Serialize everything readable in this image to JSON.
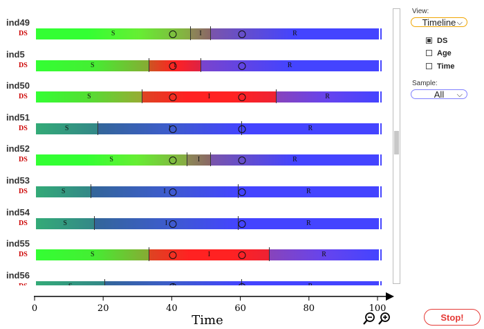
{
  "rows": [
    {
      "name": "ind49",
      "tag": "DS",
      "segments": [
        {
          "label": "S",
          "start": 0,
          "end": 45,
          "colors": [
            "#33ff33",
            "#33ff33",
            "#66ee33",
            "#88aa44"
          ]
        },
        {
          "label": "I",
          "start": 45,
          "end": 51,
          "colors": [
            "#8c8a55",
            "#8a6666"
          ]
        },
        {
          "label": "R",
          "start": 51,
          "end": 100,
          "colors": [
            "#7a55aa",
            "#4444ff",
            "#4444ff"
          ]
        }
      ],
      "markers": [
        40,
        60
      ]
    },
    {
      "name": "ind5",
      "tag": "DS",
      "segments": [
        {
          "label": "S",
          "start": 0,
          "end": 33,
          "colors": [
            "#33ff33",
            "#44ee33",
            "#88aa33"
          ]
        },
        {
          "label": "I",
          "start": 33,
          "end": 48,
          "colors": [
            "#cc5522",
            "#ff2222",
            "#dd2244"
          ]
        },
        {
          "label": "R",
          "start": 48,
          "end": 100,
          "colors": [
            "#7a44cc",
            "#4444ff",
            "#4444ff"
          ]
        }
      ],
      "markers": [
        40,
        60
      ]
    },
    {
      "name": "ind50",
      "tag": "DS",
      "segments": [
        {
          "label": "S",
          "start": 0,
          "end": 31,
          "colors": [
            "#33ff33",
            "#55dd33",
            "#99aa33"
          ]
        },
        {
          "label": "I",
          "start": 31,
          "end": 70,
          "colors": [
            "#dd4422",
            "#ff2222",
            "#ff2222",
            "#ee2233"
          ]
        },
        {
          "label": "R",
          "start": 70,
          "end": 100,
          "colors": [
            "#8844bb",
            "#6644ee",
            "#4444ff"
          ]
        }
      ],
      "markers": [
        40,
        60
      ]
    },
    {
      "name": "ind51",
      "tag": "DS",
      "segments": [
        {
          "label": "S",
          "start": 0,
          "end": 18,
          "colors": [
            "#33aa77",
            "#338888"
          ]
        },
        {
          "label": "I",
          "start": 18,
          "end": 60,
          "colors": [
            "#336699",
            "#3d5ccc",
            "#4444ff"
          ]
        },
        {
          "label": "R",
          "start": 60,
          "end": 100,
          "colors": [
            "#4444ff",
            "#4444ff"
          ]
        }
      ],
      "markers": [
        40,
        60
      ]
    },
    {
      "name": "ind52",
      "tag": "DS",
      "segments": [
        {
          "label": "S",
          "start": 0,
          "end": 44,
          "colors": [
            "#33ff33",
            "#33ff33",
            "#66ee33",
            "#88aa44"
          ]
        },
        {
          "label": "I",
          "start": 44,
          "end": 51,
          "colors": [
            "#8c8a55",
            "#8a6666"
          ]
        },
        {
          "label": "R",
          "start": 51,
          "end": 100,
          "colors": [
            "#7a55aa",
            "#4444ff",
            "#4444ff"
          ]
        }
      ],
      "markers": [
        40,
        60
      ]
    },
    {
      "name": "ind53",
      "tag": "DS",
      "segments": [
        {
          "label": "S",
          "start": 0,
          "end": 16,
          "colors": [
            "#33aa77",
            "#338888"
          ]
        },
        {
          "label": "I",
          "start": 16,
          "end": 59,
          "colors": [
            "#336699",
            "#3d5ccc",
            "#4444ff"
          ]
        },
        {
          "label": "R",
          "start": 59,
          "end": 100,
          "colors": [
            "#4444ff",
            "#4444ff"
          ]
        }
      ],
      "markers": [
        40,
        60
      ]
    },
    {
      "name": "ind54",
      "tag": "DS",
      "segments": [
        {
          "label": "S",
          "start": 0,
          "end": 17,
          "colors": [
            "#33aa77",
            "#338888"
          ]
        },
        {
          "label": "I",
          "start": 17,
          "end": 59,
          "colors": [
            "#336699",
            "#3d5ccc",
            "#4444ff"
          ]
        },
        {
          "label": "R",
          "start": 59,
          "end": 100,
          "colors": [
            "#4444ff",
            "#4444ff"
          ]
        }
      ],
      "markers": [
        40,
        60
      ]
    },
    {
      "name": "ind55",
      "tag": "DS",
      "segments": [
        {
          "label": "S",
          "start": 0,
          "end": 33,
          "colors": [
            "#33ff33",
            "#44ee33",
            "#88aa33"
          ]
        },
        {
          "label": "I",
          "start": 33,
          "end": 68,
          "colors": [
            "#dd4422",
            "#ff2222",
            "#ff2222",
            "#ee2233"
          ]
        },
        {
          "label": "R",
          "start": 68,
          "end": 100,
          "colors": [
            "#8844bb",
            "#6644ee",
            "#4444ff"
          ]
        }
      ],
      "markers": [
        40,
        60
      ]
    },
    {
      "name": "ind56",
      "tag": "DS",
      "segments": [
        {
          "label": "S",
          "start": 0,
          "end": 20,
          "colors": [
            "#33aa77",
            "#338888"
          ]
        },
        {
          "label": "I",
          "start": 20,
          "end": 60,
          "colors": [
            "#336699",
            "#3d5ccc",
            "#4444ff"
          ]
        },
        {
          "label": "R",
          "start": 60,
          "end": 100,
          "colors": [
            "#4444ff",
            "#4444ff"
          ]
        }
      ],
      "markers": [
        40,
        60
      ]
    }
  ],
  "axis": {
    "label": "Time",
    "min": 0,
    "max": 100,
    "ticks": [
      0,
      20,
      40,
      60,
      80,
      100
    ],
    "zoom_out_icon": "zoom-out-icon",
    "zoom_in_icon": "zoom-in-icon"
  },
  "scrollbar": {
    "position": 0.5
  },
  "panel": {
    "view_label": "View:",
    "view_selected": "Timeline",
    "view_color": "#f0a500",
    "options": [
      {
        "label": "DS",
        "checked": true
      },
      {
        "label": "Age",
        "checked": false
      },
      {
        "label": "Time",
        "checked": false
      }
    ],
    "sample_label": "Sample:",
    "sample_selected": "All",
    "sample_color": "#8080ff",
    "stop_label": "Stop!",
    "stop_color": "#e53935"
  }
}
